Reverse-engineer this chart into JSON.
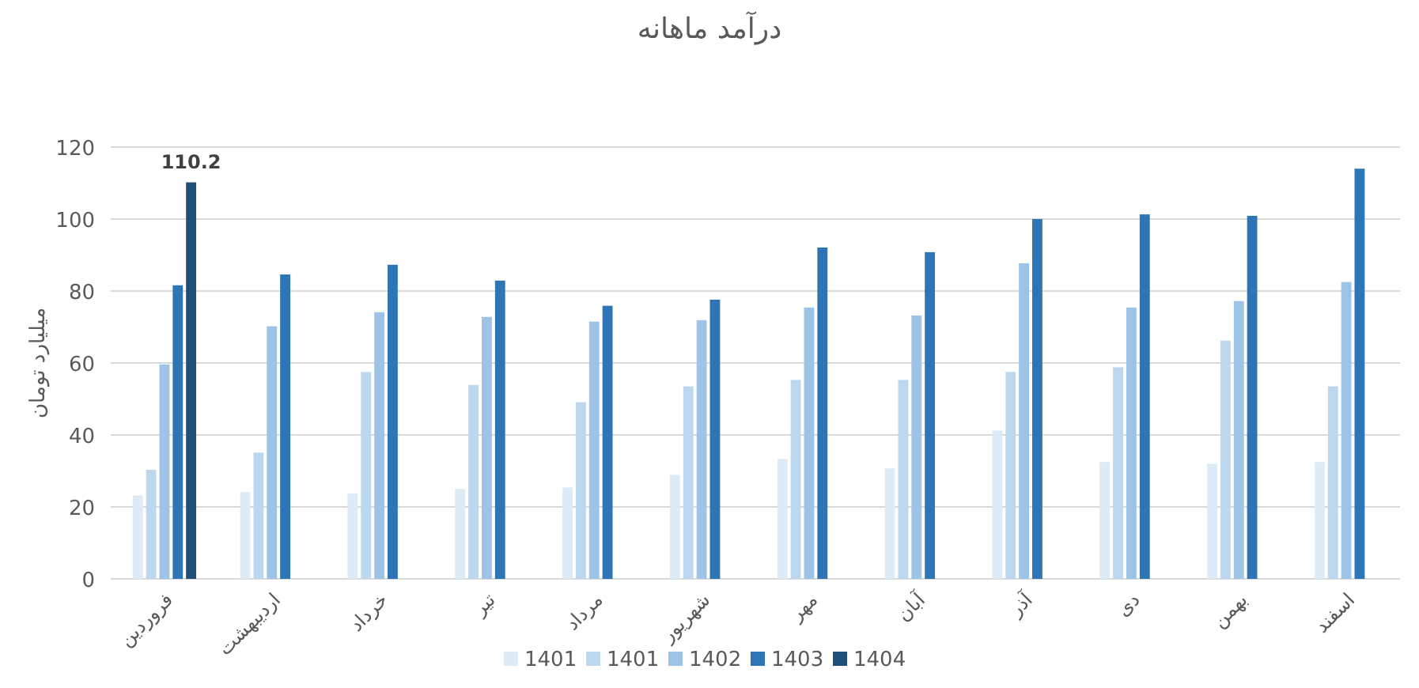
{
  "chart_data": {
    "type": "bar",
    "title": "درآمد ماهانه",
    "ylabel": "میلیارد تومان",
    "categories": [
      "فروردین",
      "اردیبهشت",
      "خرداد",
      "تیر",
      "مرداد",
      "شهریور",
      "مهر",
      "آبان",
      "آذر",
      "دی",
      "بهمن",
      "اسفند"
    ],
    "series": [
      {
        "name": "1401",
        "color": "#ddebf7",
        "values": [
          23.2,
          24.1,
          23.7,
          25.0,
          25.4,
          28.9,
          33.3,
          30.7,
          41.2,
          32.5,
          32.0,
          32.5
        ]
      },
      {
        "name": "1401",
        "color": "#bdd7ee",
        "values": [
          30.3,
          35.1,
          57.5,
          53.9,
          49.1,
          53.5,
          55.3,
          55.3,
          57.5,
          58.8,
          66.2,
          53.5
        ]
      },
      {
        "name": "1402",
        "color": "#9dc3e6",
        "values": [
          59.6,
          70.2,
          74.1,
          72.8,
          71.5,
          71.9,
          75.4,
          73.2,
          87.7,
          75.4,
          77.2,
          82.5
        ]
      },
      {
        "name": "1403",
        "color": "#2e75b6",
        "values": [
          81.6,
          84.6,
          87.3,
          82.9,
          75.9,
          77.6,
          92.1,
          90.8,
          100,
          101.3,
          100.9,
          114.0
        ]
      },
      {
        "name": "1404",
        "color": "#1f4e79",
        "values": [
          110.2,
          null,
          null,
          null,
          null,
          null,
          null,
          null,
          null,
          null,
          null,
          null
        ],
        "value_labels": [
          "110.2",
          null,
          null,
          null,
          null,
          null,
          null,
          null,
          null,
          null,
          null,
          null
        ]
      }
    ],
    "ylim": [
      0,
      120
    ],
    "yticks": [
      0,
      20,
      40,
      60,
      80,
      100,
      120
    ],
    "grid": "y",
    "legend": "bottom"
  }
}
